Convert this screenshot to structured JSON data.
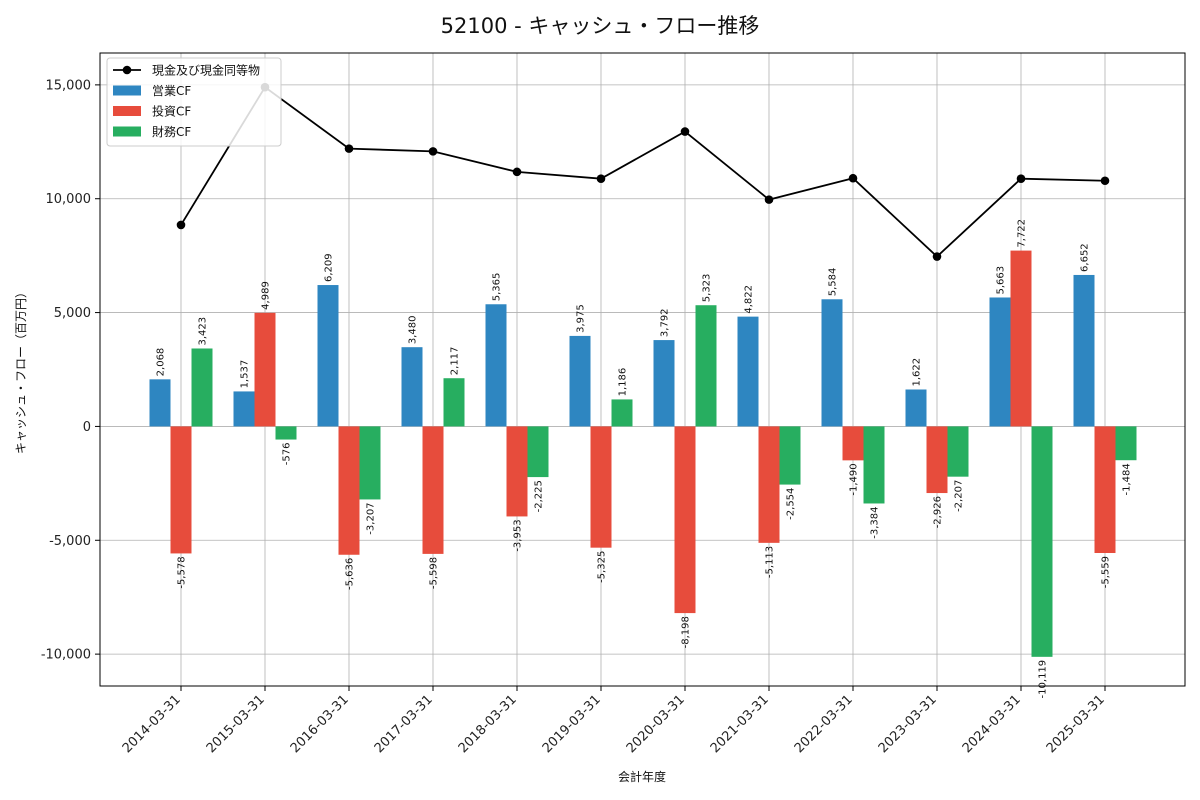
{
  "chart_data": {
    "type": "bar",
    "title": "52100 - キャッシュ・フロー推移",
    "xlabel": "会計年度",
    "ylabel": "キャッシュ・フロー（百万円）",
    "ylim": [
      -11400,
      16400
    ],
    "yticks": [
      -10000,
      -5000,
      0,
      5000,
      10000,
      15000
    ],
    "ytick_labels": [
      "-10,000",
      "-5,000",
      "0",
      "5,000",
      "10,000",
      "15,000"
    ],
    "grid": true,
    "legend_position": "top-left",
    "categories": [
      "2014-03-31",
      "2015-03-31",
      "2016-03-31",
      "2017-03-31",
      "2018-03-31",
      "2019-03-31",
      "2020-03-31",
      "2021-03-31",
      "2022-03-31",
      "2023-03-31",
      "2024-03-31",
      "2025-03-31"
    ],
    "series": [
      {
        "name": "営業CF",
        "kind": "bar",
        "color": "#2e86c1",
        "values": [
          2068,
          1537,
          6209,
          3480,
          5365,
          3975,
          3792,
          4822,
          5584,
          1622,
          5663,
          6652
        ],
        "labels": [
          "2,068",
          "1,537",
          "6,209",
          "3,480",
          "5,365",
          "3,975",
          "3,792",
          "4,822",
          "5,584",
          "1,622",
          "5,663",
          "6,652"
        ]
      },
      {
        "name": "投資CF",
        "kind": "bar",
        "color": "#e74c3c",
        "values": [
          -5578,
          4989,
          -5636,
          -5598,
          -3953,
          -5325,
          -8198,
          -5113,
          -1490,
          -2926,
          7722,
          -5559
        ],
        "labels": [
          "-5,578",
          "4,989",
          "-5,636",
          "-5,598",
          "-3,953",
          "-5,325",
          "-8,198",
          "-5,113",
          "-1,490",
          "-2,926",
          "7,722",
          "-5,559"
        ]
      },
      {
        "name": "財務CF",
        "kind": "bar",
        "color": "#27ae60",
        "values": [
          3423,
          -576,
          -3207,
          2117,
          -2225,
          1186,
          5323,
          -2554,
          -3384,
          -2207,
          -10119,
          -1484
        ],
        "labels": [
          "3,423",
          "-576",
          "-3,207",
          "2,117",
          "-2,225",
          "1,186",
          "5,323",
          "-2,554",
          "-3,384",
          "-2,207",
          "-10,119",
          "-1,484"
        ]
      },
      {
        "name": "現金及び現金同等物",
        "kind": "line",
        "color": "#000000",
        "values": [
          8850,
          14900,
          12200,
          12080,
          11180,
          10880,
          12950,
          9960,
          10900,
          7460,
          10880,
          10790
        ]
      }
    ]
  }
}
